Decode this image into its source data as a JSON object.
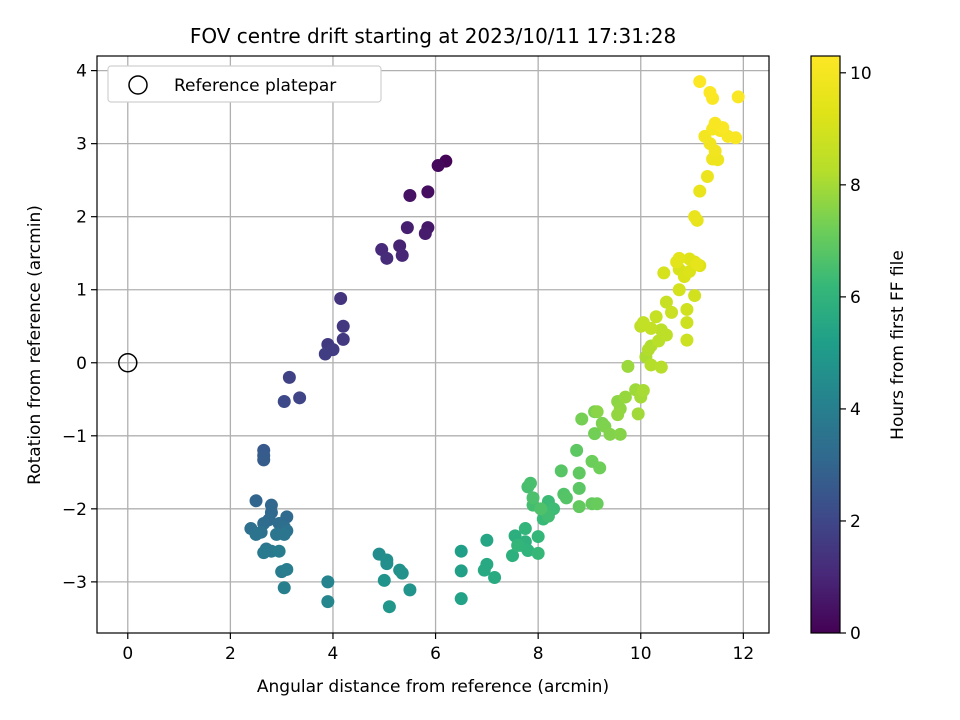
{
  "chart_data": {
    "type": "scatter",
    "title": "FOV centre drift starting at 2023/10/11 17:31:28",
    "xlabel": "Angular distance from reference (arcmin)",
    "ylabel": "Rotation from reference (arcmin)",
    "xlim": [
      -0.6,
      12.5
    ],
    "ylim": [
      -3.7,
      4.2
    ],
    "x_ticks": [
      0,
      2,
      4,
      6,
      8,
      10,
      12
    ],
    "y_ticks": [
      -3,
      -2,
      -1,
      0,
      1,
      2,
      3,
      4
    ],
    "grid": true,
    "legend_placement": "top-left",
    "legend_entries": [
      "Reference platepar"
    ],
    "reference_point": {
      "x": 0,
      "y": 0
    },
    "colorbar": {
      "label": "Hours from first FF file",
      "range": [
        0,
        10.3
      ],
      "ticks": [
        0,
        2,
        4,
        6,
        8,
        10
      ],
      "colormap": "viridis"
    },
    "points": [
      [
        6.2,
        2.76,
        0.1
      ],
      [
        6.05,
        2.7,
        0.2
      ],
      [
        5.85,
        2.34,
        0.35
      ],
      [
        5.5,
        2.29,
        0.45
      ],
      [
        5.85,
        1.85,
        0.6
      ],
      [
        5.8,
        1.77,
        0.7
      ],
      [
        5.45,
        1.85,
        0.8
      ],
      [
        5.3,
        1.6,
        0.9
      ],
      [
        5.35,
        1.47,
        1.0
      ],
      [
        4.95,
        1.55,
        1.1
      ],
      [
        5.05,
        1.43,
        1.15
      ],
      [
        4.15,
        0.88,
        1.4
      ],
      [
        4.2,
        0.5,
        1.5
      ],
      [
        4.2,
        0.32,
        1.55
      ],
      [
        3.9,
        0.25,
        1.6
      ],
      [
        4.0,
        0.18,
        1.65
      ],
      [
        3.85,
        0.12,
        1.7
      ],
      [
        3.15,
        -0.2,
        1.85
      ],
      [
        3.35,
        -0.48,
        1.95
      ],
      [
        3.05,
        -0.53,
        2.05
      ],
      [
        2.65,
        -1.2,
        2.6
      ],
      [
        2.65,
        -1.27,
        2.65
      ],
      [
        2.65,
        -1.33,
        2.7
      ],
      [
        2.5,
        -1.89,
        3.0
      ],
      [
        2.8,
        -1.95,
        3.05
      ],
      [
        2.8,
        -2.05,
        3.1
      ],
      [
        3.1,
        -2.11,
        3.15
      ],
      [
        2.75,
        -2.15,
        3.2
      ],
      [
        2.65,
        -2.2,
        3.25
      ],
      [
        2.95,
        -2.2,
        3.3
      ],
      [
        3.05,
        -2.25,
        3.35
      ],
      [
        2.4,
        -2.27,
        3.4
      ],
      [
        2.6,
        -2.32,
        3.45
      ],
      [
        3.1,
        -2.3,
        3.5
      ],
      [
        2.5,
        -2.35,
        3.55
      ],
      [
        2.9,
        -2.35,
        3.6
      ],
      [
        3.05,
        -2.35,
        3.65
      ],
      [
        2.7,
        -2.55,
        3.7
      ],
      [
        2.8,
        -2.58,
        3.75
      ],
      [
        2.65,
        -2.6,
        3.8
      ],
      [
        2.95,
        -2.58,
        3.85
      ],
      [
        3.0,
        -2.86,
        3.9
      ],
      [
        3.1,
        -2.83,
        3.95
      ],
      [
        3.05,
        -3.08,
        4.0
      ],
      [
        3.9,
        -3.0,
        4.2
      ],
      [
        3.9,
        -3.27,
        4.25
      ],
      [
        4.9,
        -2.62,
        4.5
      ],
      [
        5.05,
        -2.7,
        4.55
      ],
      [
        5.05,
        -2.75,
        4.6
      ],
      [
        5.3,
        -2.84,
        4.65
      ],
      [
        5.35,
        -2.88,
        4.7
      ],
      [
        5.0,
        -2.98,
        4.75
      ],
      [
        5.5,
        -3.11,
        4.8
      ],
      [
        5.1,
        -3.34,
        4.85
      ],
      [
        6.5,
        -2.58,
        5.2
      ],
      [
        6.5,
        -2.85,
        5.25
      ],
      [
        6.5,
        -3.23,
        5.3
      ],
      [
        7.0,
        -2.43,
        5.5
      ],
      [
        7.0,
        -2.76,
        5.55
      ],
      [
        6.95,
        -2.84,
        5.6
      ],
      [
        7.15,
        -2.94,
        5.65
      ],
      [
        7.55,
        -2.37,
        5.8
      ],
      [
        7.5,
        -2.64,
        5.85
      ],
      [
        7.75,
        -2.45,
        5.9
      ],
      [
        7.65,
        -2.5,
        5.95
      ],
      [
        7.8,
        -2.57,
        6.0
      ],
      [
        7.75,
        -2.27,
        6.05
      ],
      [
        7.6,
        -2.5,
        6.1
      ],
      [
        8.0,
        -2.38,
        6.15
      ],
      [
        8.0,
        -2.61,
        6.2
      ],
      [
        8.1,
        -2.14,
        6.25
      ],
      [
        8.2,
        -1.9,
        6.3
      ],
      [
        8.3,
        -2.0,
        6.35
      ],
      [
        8.2,
        -2.1,
        6.4
      ],
      [
        7.9,
        -1.95,
        6.45
      ],
      [
        7.8,
        -1.7,
        6.5
      ],
      [
        7.85,
        -1.65,
        6.55
      ],
      [
        7.9,
        -1.85,
        6.6
      ],
      [
        8.05,
        -2.0,
        6.65
      ],
      [
        8.5,
        -1.8,
        6.7
      ],
      [
        8.55,
        -1.85,
        6.75
      ],
      [
        8.45,
        -1.48,
        6.8
      ],
      [
        8.8,
        -1.72,
        6.85
      ],
      [
        8.75,
        -1.2,
        6.9
      ],
      [
        8.8,
        -1.51,
        6.95
      ],
      [
        8.8,
        -1.97,
        7.0
      ],
      [
        9.05,
        -1.93,
        7.05
      ],
      [
        9.15,
        -1.93,
        7.1
      ],
      [
        9.05,
        -1.35,
        7.15
      ],
      [
        9.2,
        -1.44,
        7.2
      ],
      [
        9.1,
        -0.97,
        7.25
      ],
      [
        8.85,
        -0.77,
        7.3
      ],
      [
        9.1,
        -0.67,
        7.35
      ],
      [
        9.25,
        -0.83,
        7.4
      ],
      [
        9.3,
        -0.87,
        7.45
      ],
      [
        9.4,
        -0.98,
        7.5
      ],
      [
        9.6,
        -0.98,
        7.55
      ],
      [
        9.15,
        -0.67,
        7.6
      ],
      [
        9.55,
        -0.53,
        7.65
      ],
      [
        9.6,
        -0.63,
        7.7
      ],
      [
        9.55,
        -0.71,
        7.75
      ],
      [
        9.7,
        -0.47,
        7.8
      ],
      [
        9.75,
        -0.05,
        7.85
      ],
      [
        9.9,
        -0.37,
        7.9
      ],
      [
        9.95,
        -0.7,
        7.95
      ],
      [
        10.0,
        -0.47,
        8.0
      ],
      [
        10.05,
        -0.38,
        8.05
      ],
      [
        10.1,
        0.08,
        8.1
      ],
      [
        10.2,
        0.23,
        8.15
      ],
      [
        10.15,
        0.18,
        8.2
      ],
      [
        10.2,
        -0.03,
        8.25
      ],
      [
        10.4,
        -0.06,
        8.3
      ],
      [
        10.35,
        0.3,
        8.35
      ],
      [
        10.4,
        0.45,
        8.4
      ],
      [
        10.5,
        0.38,
        8.45
      ],
      [
        10.0,
        0.5,
        8.5
      ],
      [
        10.05,
        0.55,
        8.55
      ],
      [
        10.2,
        0.47,
        8.6
      ],
      [
        10.3,
        0.63,
        8.65
      ],
      [
        10.5,
        0.83,
        8.7
      ],
      [
        10.6,
        0.69,
        8.75
      ],
      [
        10.9,
        0.31,
        8.8
      ],
      [
        10.9,
        0.55,
        8.85
      ],
      [
        10.9,
        0.73,
        8.9
      ],
      [
        11.05,
        0.92,
        8.95
      ],
      [
        10.75,
        1.0,
        9.0
      ],
      [
        10.45,
        1.23,
        9.05
      ],
      [
        10.75,
        1.28,
        9.1
      ],
      [
        10.85,
        1.18,
        9.15
      ],
      [
        10.95,
        1.25,
        9.2
      ],
      [
        11.15,
        1.33,
        9.25
      ],
      [
        11.05,
        1.38,
        9.3
      ],
      [
        10.95,
        1.42,
        9.35
      ],
      [
        10.7,
        1.38,
        9.4
      ],
      [
        10.75,
        1.43,
        9.45
      ],
      [
        11.1,
        1.35,
        9.5
      ],
      [
        11.1,
        1.95,
        9.55
      ],
      [
        11.05,
        2.0,
        9.6
      ],
      [
        11.15,
        2.35,
        9.65
      ],
      [
        11.3,
        2.55,
        9.7
      ],
      [
        11.5,
        2.78,
        9.75
      ],
      [
        11.4,
        2.79,
        9.8
      ],
      [
        11.45,
        2.9,
        9.85
      ],
      [
        11.35,
        3.0,
        9.9
      ],
      [
        11.25,
        3.1,
        9.95
      ],
      [
        11.4,
        3.2,
        10.0
      ],
      [
        11.55,
        3.18,
        10.05
      ],
      [
        11.7,
        3.1,
        10.1
      ],
      [
        11.85,
        3.08,
        10.15
      ],
      [
        11.9,
        3.64,
        10.2
      ],
      [
        11.4,
        3.62,
        10.2
      ],
      [
        11.35,
        3.7,
        10.25
      ],
      [
        11.15,
        3.85,
        10.25
      ],
      [
        11.6,
        3.22,
        10.2
      ],
      [
        11.45,
        3.28,
        10.15
      ]
    ]
  }
}
